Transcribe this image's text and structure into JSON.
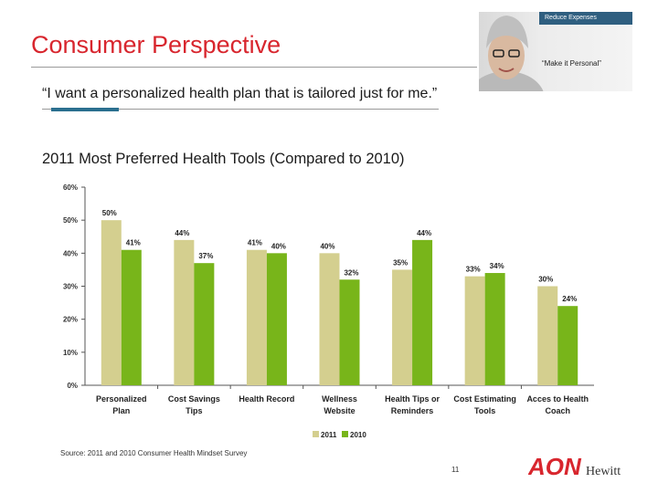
{
  "slide": {
    "title": "Consumer Perspective",
    "quote": "“I want a personalized health plan that is tailored just for me.”",
    "chart_title": "2011 Most Preferred Health Tools (Compared to 2010)",
    "source": "Source: 2011 and 2010 Consumer Health Mindset Survey",
    "page_number": "11",
    "photo_banner": "Reduce Expenses",
    "photo_caption": "“Make it Personal”",
    "logo_text": "AON",
    "logo_subtext": "Hewitt"
  },
  "colors": {
    "title": "#d8262e",
    "series_2011": "#d4cf8f",
    "series_2010": "#78b51a",
    "accent": "#2a6f8f",
    "logo": "#d8262e"
  },
  "chart_data": {
    "type": "bar",
    "categories": [
      [
        "Personalized",
        "Plan"
      ],
      [
        "Cost Savings",
        "Tips"
      ],
      [
        "Health Record"
      ],
      [
        "Wellness",
        "Website"
      ],
      [
        "Health Tips or",
        "Reminders"
      ],
      [
        "Cost Estimating",
        "Tools"
      ],
      [
        "Acces to Health",
        "Coach"
      ]
    ],
    "series": [
      {
        "name": "2011",
        "values": [
          50,
          44,
          41,
          40,
          35,
          33,
          30
        ],
        "labels": [
          "50%",
          "44%",
          "41%",
          "40%",
          "35%",
          "33%",
          "30%"
        ]
      },
      {
        "name": "2010",
        "values": [
          41,
          37,
          40,
          32,
          44,
          34,
          24
        ],
        "labels": [
          "41%",
          "37%",
          "40%",
          "32%",
          "44%",
          "34%",
          "24%"
        ]
      }
    ],
    "ylim": [
      0,
      60
    ],
    "yticks": [
      "0%",
      "10%",
      "20%",
      "30%",
      "40%",
      "50%",
      "60%"
    ],
    "legend": "bottom",
    "grid": false
  }
}
